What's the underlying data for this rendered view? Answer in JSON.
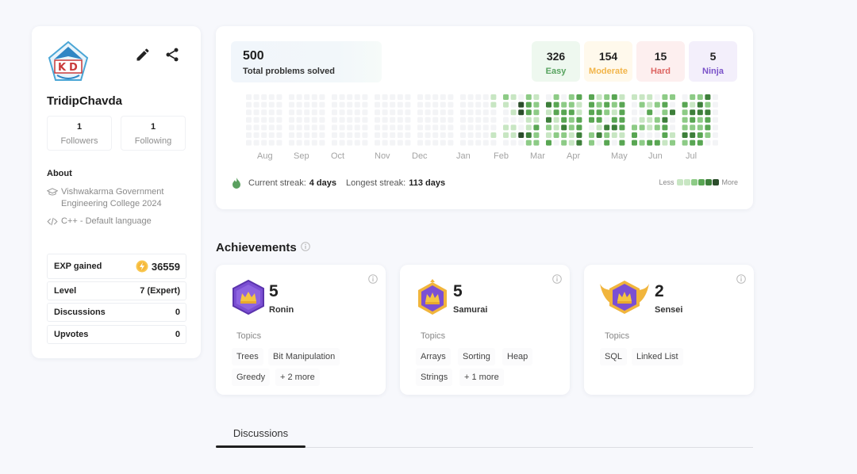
{
  "profile": {
    "username": "TridipChavda",
    "followers": {
      "count": "1",
      "label": "Followers"
    },
    "following": {
      "count": "1",
      "label": "Following"
    },
    "about_title": "About",
    "college": "Vishwakarma Government Engineering College 2024",
    "language": "C++ - Default language",
    "stats": [
      {
        "label": "EXP gained",
        "value": "36559"
      },
      {
        "label": "Level",
        "value": "7 (Expert)"
      },
      {
        "label": "Discussions",
        "value": "0"
      },
      {
        "label": "Upvotes",
        "value": "0"
      }
    ],
    "icons": {
      "edit": "pencil-icon",
      "share": "share-icon",
      "exp": "lightning-coin-icon",
      "college": "graduation-cap-icon",
      "language": "code-icon"
    }
  },
  "activity": {
    "total": "500",
    "total_label": "Total problems solved",
    "difficulty": [
      {
        "count": "326",
        "label": "Easy",
        "color": "#57a35f",
        "bg": "#eef8ef"
      },
      {
        "count": "154",
        "label": "Moderate",
        "color": "#f2b54a",
        "bg": "#fff9ec"
      },
      {
        "count": "15",
        "label": "Hard",
        "color": "#dd6461",
        "bg": "#fdefef"
      },
      {
        "count": "5",
        "label": "Ninja",
        "color": "#7a52c9",
        "bg": "#f3effb"
      }
    ],
    "months": [
      "Aug",
      "Sep",
      "Oct",
      "Nov",
      "Dec",
      "Jan",
      "Feb",
      "Mar",
      "Apr",
      "May",
      "Jun",
      "Jul"
    ],
    "streak": {
      "current_label": "Current streak:",
      "current_value": "4 days",
      "longest_label": "Longest streak:",
      "longest_value": "113 days"
    },
    "legend": {
      "less": "Less",
      "more": "More"
    },
    "heat_colors": [
      "#f3f4f6",
      "#c8e6c3",
      "#8dcb86",
      "#59a653",
      "#3d7f3a",
      "#2b4d2b"
    ]
  },
  "achievements": {
    "title": "Achievements",
    "cards": [
      {
        "count": "5",
        "name": "Ronin",
        "topics_label": "Topics",
        "topics": [
          "Trees",
          "Bit Manipulation",
          "Greedy",
          "+ 2 more"
        ]
      },
      {
        "count": "5",
        "name": "Samurai",
        "topics_label": "Topics",
        "topics": [
          "Arrays",
          "Sorting",
          "Heap",
          "Strings",
          "+ 1 more"
        ]
      },
      {
        "count": "2",
        "name": "Sensei",
        "topics_label": "Topics",
        "topics": [
          "SQL",
          "Linked List"
        ]
      }
    ]
  },
  "tabs": [
    {
      "label": "Discussions",
      "active": true
    }
  ]
}
